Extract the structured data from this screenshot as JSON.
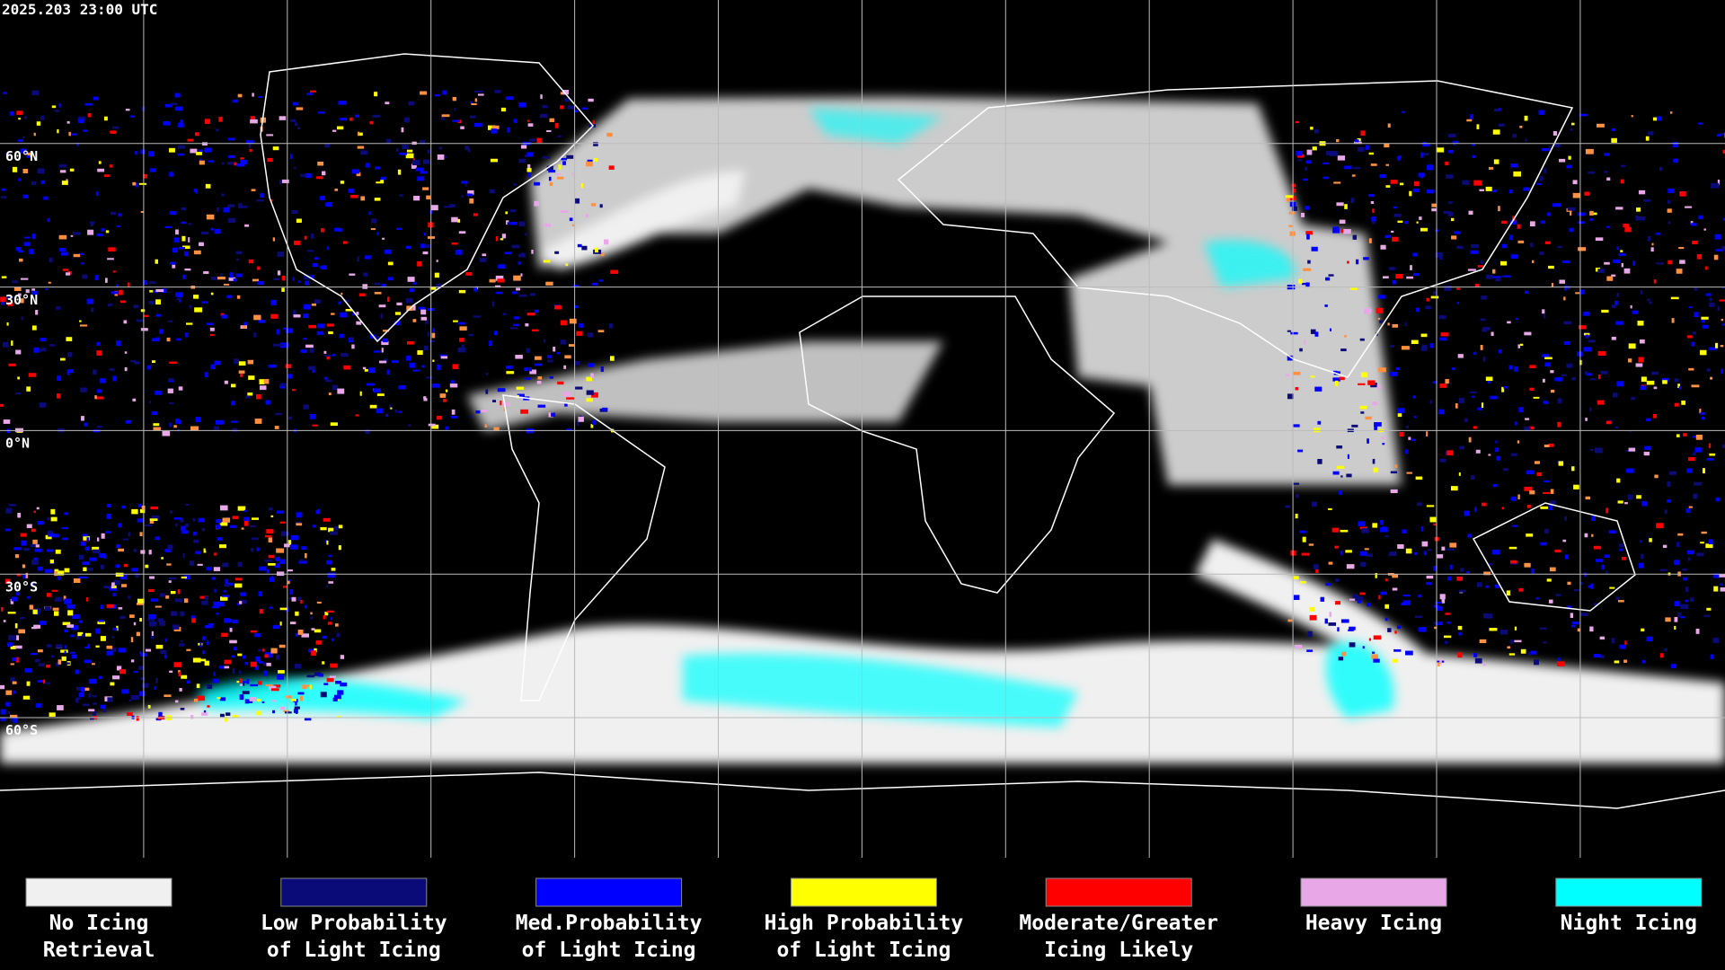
{
  "timestamp": "2025.203 23:00 UTC",
  "latitude_labels": [
    "60°N",
    "30°N",
    "0°N",
    "30°S",
    "60°S"
  ],
  "legend": [
    {
      "color": "#f0f0f0",
      "label": [
        "No Icing",
        "Retrieval"
      ]
    },
    {
      "color": "#0a0a78",
      "label": [
        "Low Probability",
        "of Light Icing"
      ]
    },
    {
      "color": "#0000ff",
      "label": [
        "Med.Probability",
        "of Light Icing"
      ]
    },
    {
      "color": "#ffff00",
      "label": [
        "High Probability",
        "of Light Icing"
      ]
    },
    {
      "color": "#ff0000",
      "label": [
        "Moderate/Greater",
        "Icing Likely"
      ]
    },
    {
      "color": "#e8a8e8",
      "label": [
        "Heavy Icing"
      ]
    },
    {
      "color": "#00ffff",
      "label": [
        "Night Icing"
      ]
    }
  ]
}
